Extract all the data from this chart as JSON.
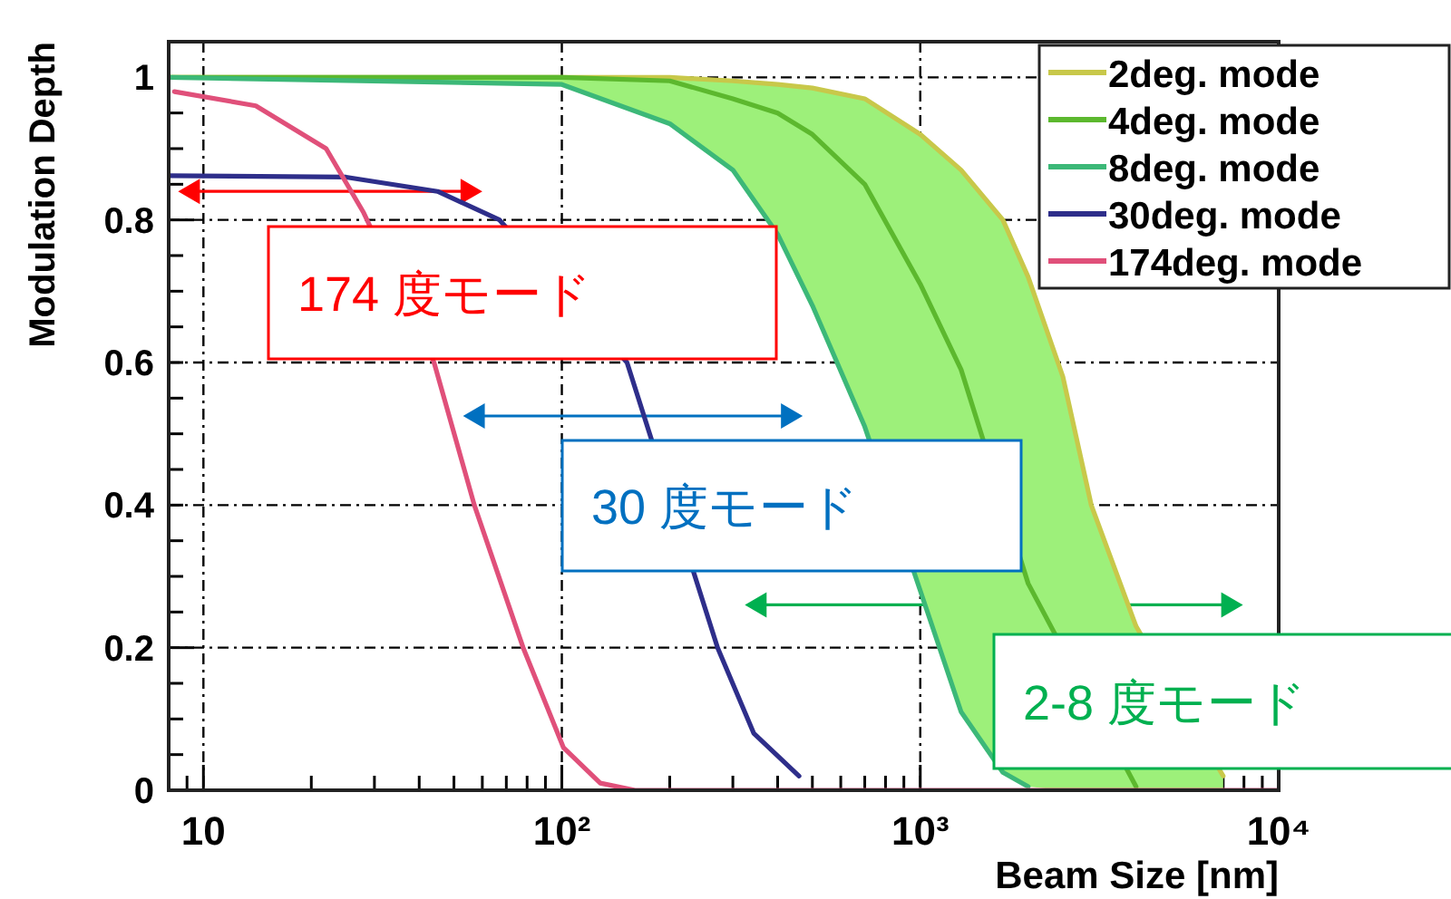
{
  "chart_data": {
    "type": "line",
    "xlabel": "Beam Size [nm]",
    "ylabel": "Modulation Depth",
    "log": "x",
    "xlim": [
      8,
      10000
    ],
    "ylim": [
      0,
      1.05
    ],
    "xticks": [
      {
        "value": 10,
        "label": "10"
      },
      {
        "value": 100,
        "label": "10²"
      },
      {
        "value": 1000,
        "label": "10³"
      },
      {
        "value": 10000,
        "label": "10⁴"
      }
    ],
    "yticks": [
      0,
      0.2,
      0.4,
      0.6,
      0.8,
      1
    ],
    "grid": true,
    "legend": "top right",
    "marker": "none",
    "line_style": "solid",
    "series": [
      {
        "name": "2deg. mode",
        "color": "#c8c84a",
        "x": [
          8,
          100,
          200,
          300,
          400,
          500,
          700,
          1000,
          1300,
          1700,
          2000,
          2500,
          3000,
          4000,
          7000
        ],
        "values": [
          1,
          1,
          1,
          0.995,
          0.99,
          0.985,
          0.97,
          0.92,
          0.87,
          0.8,
          0.72,
          0.58,
          0.4,
          0.23,
          0.02
        ],
        "lower": [
          1,
          0.99,
          0.935,
          0.87,
          0.78,
          0.68,
          0.51,
          0.28,
          0.11,
          0.025,
          0.005,
          0,
          0,
          0,
          0
        ],
        "upper": [
          1,
          1,
          1,
          0.995,
          0.99,
          0.985,
          0.97,
          0.92,
          0.87,
          0.8,
          0.72,
          0.58,
          0.4,
          0.23,
          0.02
        ]
      },
      {
        "name": "4deg. mode",
        "color": "#5cb82e",
        "x": [
          8,
          100,
          200,
          300,
          400,
          500,
          700,
          1000,
          1300,
          2000,
          4000
        ],
        "values": [
          1,
          1,
          0.995,
          0.97,
          0.95,
          0.92,
          0.85,
          0.71,
          0.59,
          0.29,
          0.005
        ]
      },
      {
        "name": "8deg. mode",
        "color": "#3cb878",
        "x": [
          8,
          100,
          200,
          300,
          400,
          500,
          700,
          1000,
          1300,
          1700,
          2000
        ],
        "values": [
          1,
          0.99,
          0.935,
          0.87,
          0.78,
          0.68,
          0.51,
          0.28,
          0.11,
          0.025,
          0.005
        ]
      },
      {
        "name": "30deg. mode",
        "color": "#2e2e8a",
        "x": [
          8,
          25,
          45,
          67,
          152,
          272,
          343,
          459
        ],
        "values": [
          0.862,
          0.86,
          0.84,
          0.8,
          0.6,
          0.2,
          0.08,
          0.02
        ]
      },
      {
        "name": "174deg. mode",
        "color": "#e0507a",
        "x": [
          8.3,
          14,
          22,
          28,
          44,
          57,
          78,
          101,
          128,
          160,
          10000
        ],
        "values": [
          0.98,
          0.96,
          0.9,
          0.81,
          0.6,
          0.4,
          0.2,
          0.06,
          0.01,
          0,
          0
        ]
      }
    ],
    "annotations": [
      "174 度モード",
      "30 度モード",
      "2-8 度モード"
    ]
  }
}
